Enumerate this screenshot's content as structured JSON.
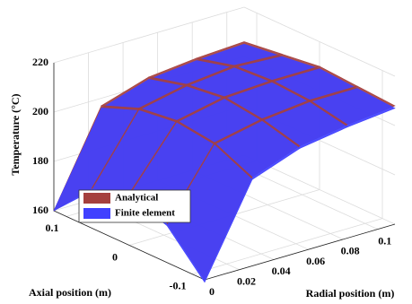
{
  "chart_data": {
    "type": "surface",
    "xlabel": "Radial position (m)",
    "ylabel": "Axial position (m)",
    "zlabel": "Temperature (°C)",
    "x": [
      0,
      0.0275,
      0.055,
      0.0825,
      0.11
    ],
    "y": [
      -0.12,
      -0.06,
      0,
      0.06,
      0.12
    ],
    "xlim": [
      0,
      0.11
    ],
    "ylim": [
      -0.12,
      0.12
    ],
    "zlim": [
      160,
      220
    ],
    "xticks": [
      0,
      0.02,
      0.04,
      0.06,
      0.08,
      0.1
    ],
    "yticks": [
      -0.1,
      0,
      0.1
    ],
    "zticks": [
      160,
      180,
      200,
      220
    ],
    "grid": true,
    "legend": "lower-left",
    "series": [
      {
        "name": "Analytical",
        "color": "#a5403e",
        "values": [
          [
            160,
            196,
            203,
            206,
            208
          ],
          [
            176,
            203,
            207,
            209,
            209
          ],
          [
            181,
            205,
            209,
            210,
            210
          ],
          [
            176,
            203,
            207,
            209,
            208
          ],
          [
            160,
            197,
            203,
            205,
            206
          ]
        ]
      },
      {
        "name": "Finite element",
        "color": "#4040ff",
        "values": [
          [
            159,
            195,
            202,
            205,
            207
          ],
          [
            175,
            202,
            206,
            208,
            208
          ],
          [
            180,
            204,
            208,
            209,
            209
          ],
          [
            175,
            202,
            206,
            208,
            207
          ],
          [
            160,
            196,
            202,
            204,
            205
          ]
        ]
      }
    ]
  }
}
